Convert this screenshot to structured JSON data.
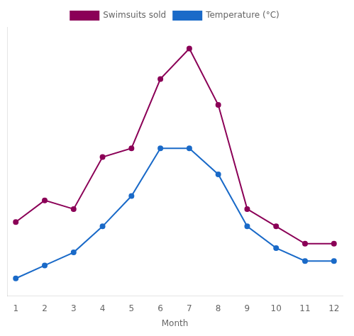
{
  "chart_data": {
    "type": "line",
    "x_label": "Month",
    "x": [
      1,
      2,
      3,
      4,
      5,
      6,
      7,
      8,
      9,
      10,
      11,
      12
    ],
    "series": [
      {
        "name": "Temperature (°C)",
        "color": "#1A6AC8",
        "marker": "circle",
        "values": [
          2,
          5,
          8,
          14,
          21,
          32,
          32,
          26,
          14,
          9,
          6,
          6
        ]
      },
      {
        "name": "Swimsuits sold",
        "color": "#8B0057",
        "marker": "circle",
        "values": [
          15,
          20,
          18,
          30,
          32,
          48,
          55,
          42,
          18,
          14,
          10,
          10
        ]
      }
    ],
    "xlim": [
      0.7,
      12.3
    ],
    "xticks": [
      1,
      2,
      3,
      4,
      5,
      6,
      7,
      8,
      9,
      10,
      11,
      12
    ],
    "ylim": [
      -2,
      60
    ],
    "grid": false,
    "legend": "top",
    "tick_labels": "x"
  }
}
